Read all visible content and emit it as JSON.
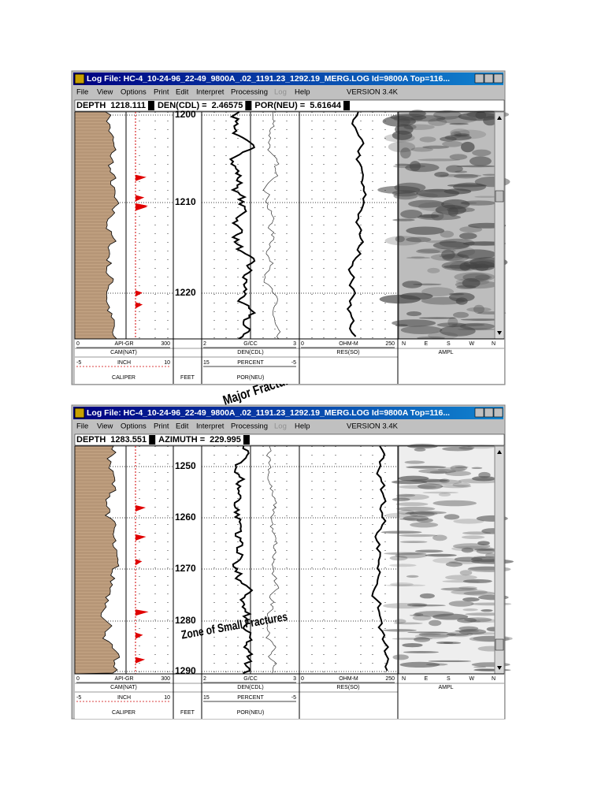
{
  "windows": [
    {
      "title": "Log File: HC-4_10-24-96_22-49_9800A_.02_1191.23_1292.19_MERG.LOG  Id=9800A   Top=116...",
      "menu": [
        "File",
        "View",
        "Options",
        "Print",
        "Edit",
        "Interpret",
        "Processing",
        "Log",
        "Help"
      ],
      "version": "VERSION 3.4K",
      "status": [
        {
          "label": "DEPTH",
          "value": "1218.111"
        },
        {
          "label": "DEN(CDL) =",
          "value": "2.46575"
        },
        {
          "label": "POR(NEU) =",
          "value": "5.61644"
        }
      ],
      "depth_labels": [
        "1200",
        "1210",
        "1220"
      ],
      "annotation": "Major Fracture Zone",
      "footer": {
        "gr": {
          "min": "0",
          "unit": "API-GR",
          "max": "300",
          "name": "CAM(NAT)"
        },
        "caliper": {
          "min": "-5",
          "unit": "INCH",
          "max": "10",
          "name": "CALIPER"
        },
        "depth": "FEET",
        "den": {
          "min": "2",
          "unit": "G/CC",
          "max": "3",
          "name": "DEN(CDL)"
        },
        "por": {
          "min": "15",
          "unit": "PERCENT",
          "max": "-5",
          "name": "POR(NEU)"
        },
        "res": {
          "min": "0",
          "unit": "OHM-M",
          "max": "250",
          "name": "RES(SO)"
        },
        "image": {
          "azimuths": [
            "N",
            "E",
            "S",
            "W",
            "N"
          ],
          "name": "AMPL"
        }
      }
    },
    {
      "title": "Log File: HC-4_10-24-96_22-49_9800A_.02_1191.23_1292.19_MERG.LOG  Id=9800A   Top=116...",
      "menu": [
        "File",
        "View",
        "Options",
        "Print",
        "Edit",
        "Interpret",
        "Processing",
        "Log",
        "Help"
      ],
      "version": "VERSION 3.4K",
      "status": [
        {
          "label": "DEPTH",
          "value": "1283.551"
        },
        {
          "label": "AZIMUTH =",
          "value": "229.995"
        }
      ],
      "depth_labels": [
        "1250",
        "1260",
        "1270",
        "1280",
        "1290"
      ],
      "annotation": "Zone of Small Fractures",
      "footer": {
        "gr": {
          "min": "0",
          "unit": "API-GR",
          "max": "300",
          "name": "CAM(NAT)"
        },
        "caliper": {
          "min": "-5",
          "unit": "INCH",
          "max": "10",
          "name": "CALIPER"
        },
        "depth": "FEET",
        "den": {
          "min": "2",
          "unit": "G/CC",
          "max": "3",
          "name": "DEN(CDL)"
        },
        "por": {
          "min": "15",
          "unit": "PERCENT",
          "max": "-5",
          "name": "POR(NEU)"
        },
        "res": {
          "min": "0",
          "unit": "OHM-M",
          "max": "250",
          "name": "RES(SO)"
        },
        "image": {
          "azimuths": [
            "N",
            "E",
            "S",
            "W",
            "N"
          ],
          "name": "AMPL"
        }
      }
    }
  ]
}
